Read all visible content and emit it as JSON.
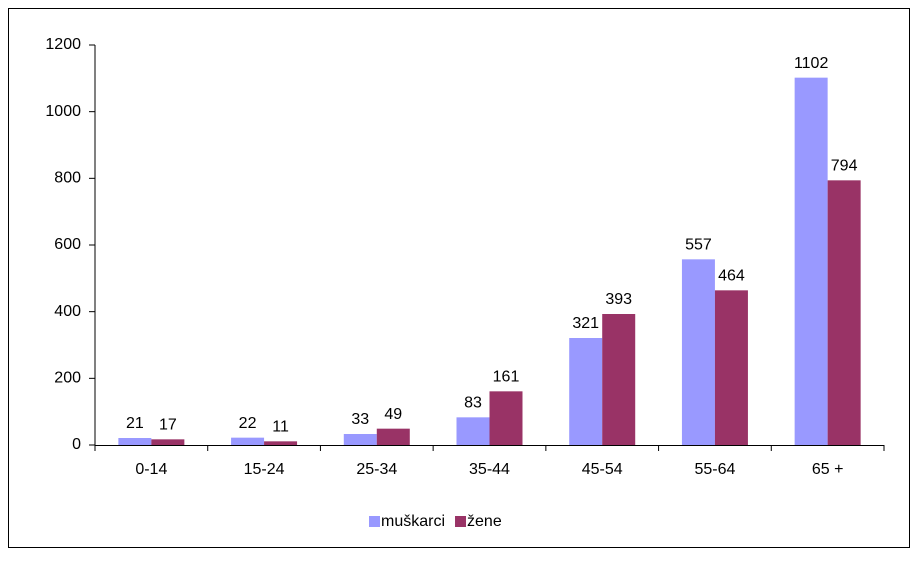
{
  "chart_data": {
    "type": "bar",
    "categories": [
      "0-14",
      "15-24",
      "25-34",
      "35-44",
      "45-54",
      "55-64",
      "65 +"
    ],
    "series": [
      {
        "name": "muškarci",
        "color": "#9999ff",
        "values": [
          21,
          22,
          33,
          83,
          321,
          557,
          1102
        ]
      },
      {
        "name": "žene",
        "color": "#993366",
        "values": [
          17,
          11,
          49,
          161,
          393,
          464,
          794
        ]
      }
    ],
    "ylim": [
      0,
      1200
    ],
    "yticks": [
      0,
      200,
      400,
      600,
      800,
      1000,
      1200
    ],
    "grid": false,
    "legend": "bottom"
  }
}
